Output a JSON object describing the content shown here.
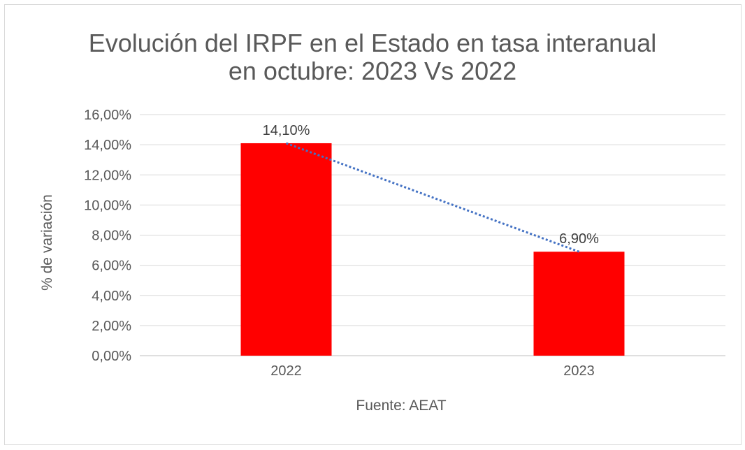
{
  "chart_data": {
    "type": "bar",
    "title": [
      "Evolución del IRPF en el Estado en tasa interanual",
      "en octubre: 2023 Vs 2022"
    ],
    "xlabel": "Fuente: AEAT",
    "ylabel": "% de variación",
    "categories": [
      "2022",
      "2023"
    ],
    "values": [
      14.1,
      6.9
    ],
    "data_labels": [
      "14,10%",
      "6,90%"
    ],
    "ylim": [
      0,
      16
    ],
    "yticks": [
      "0,00%",
      "2,00%",
      "4,00%",
      "6,00%",
      "8,00%",
      "10,00%",
      "12,00%",
      "14,00%",
      "16,00%"
    ],
    "grid": true,
    "trendline": "linear dotted",
    "colors": {
      "bar": "#ff0000",
      "trendline": "#4472c4",
      "grid": "#d9d9d9",
      "text": "#595959"
    }
  }
}
